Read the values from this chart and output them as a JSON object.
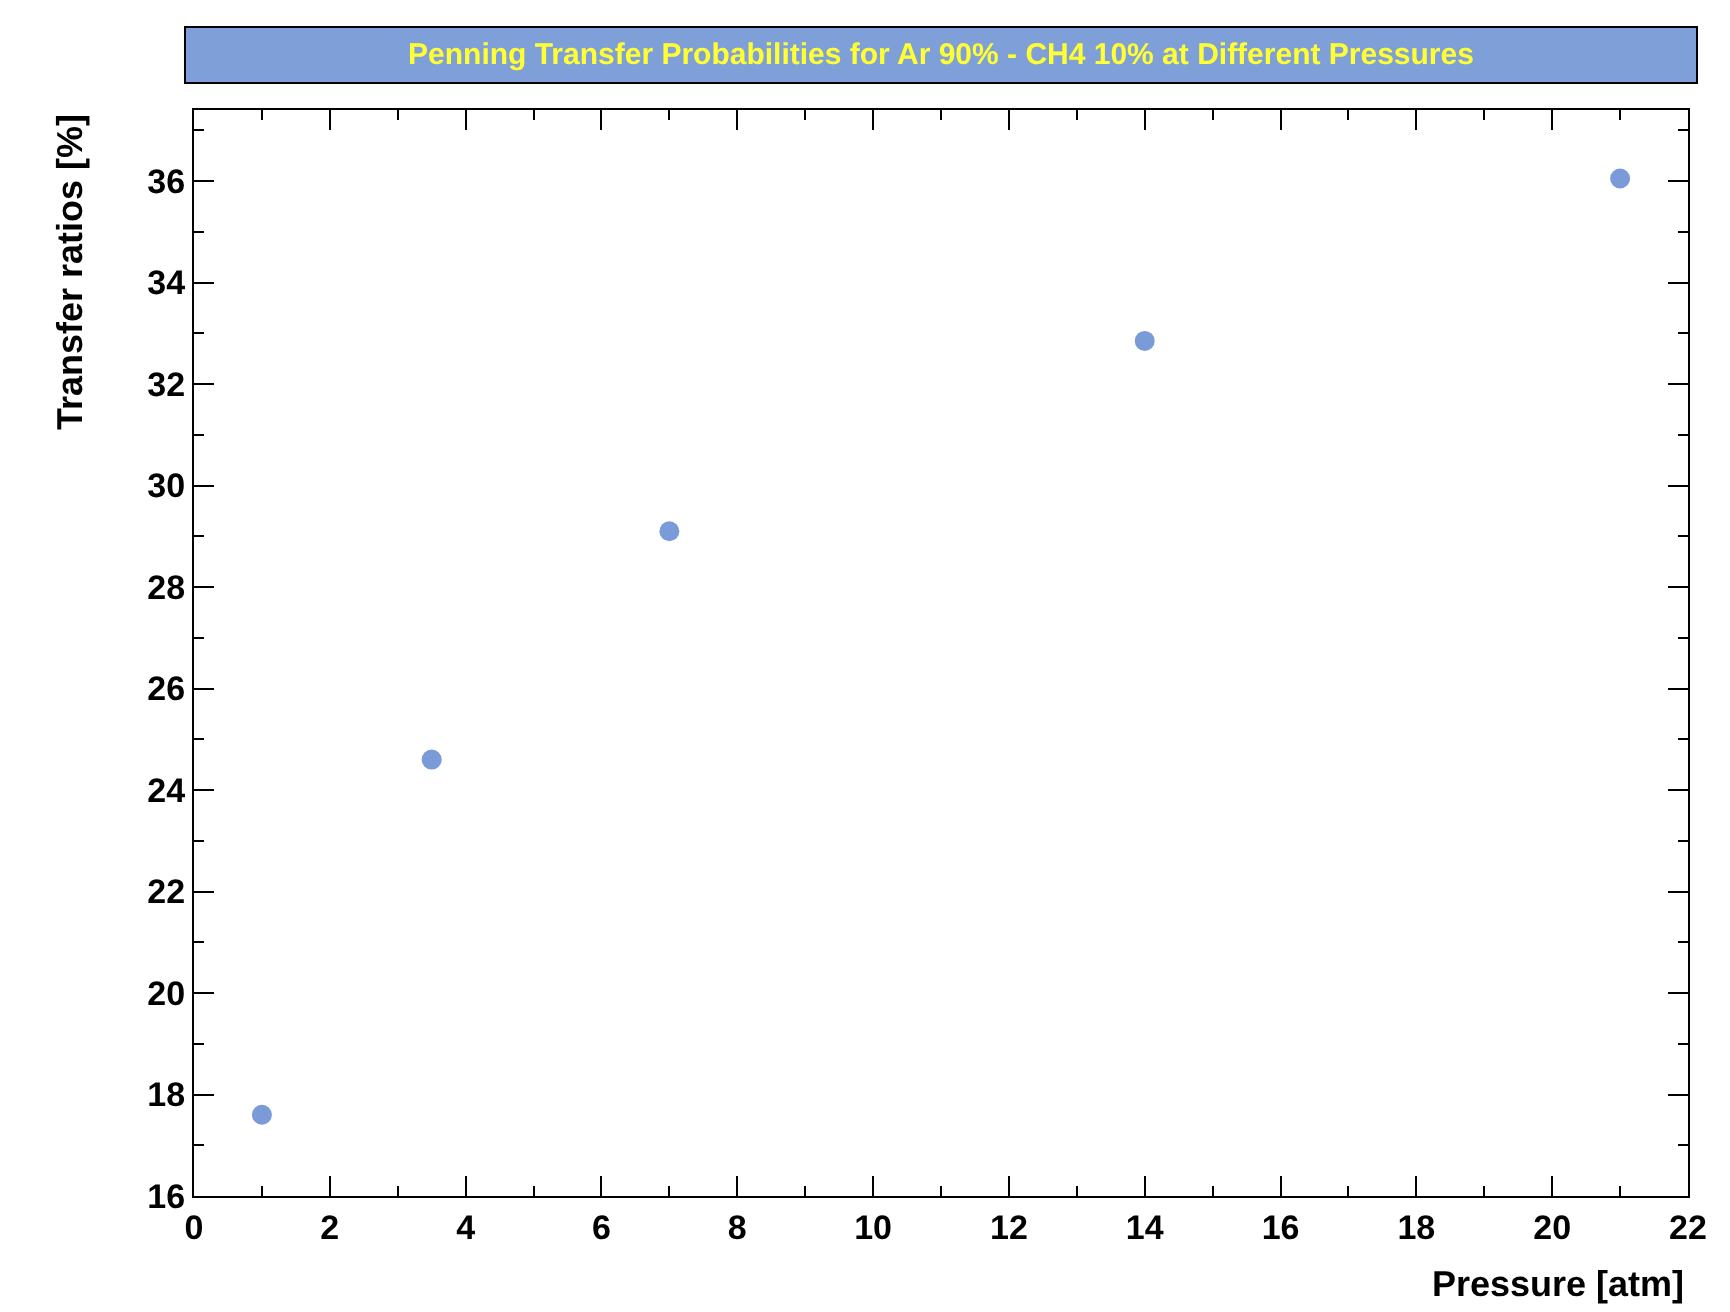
{
  "chart_data": {
    "type": "scatter",
    "title": "Penning Transfer Probabilities for Ar 90% - CH4 10% at Different Pressures",
    "xlabel": "Pressure [atm]",
    "ylabel": "Transfer ratios [%]",
    "x": [
      1,
      3.5,
      7,
      14,
      21
    ],
    "series": [
      {
        "color": "#7b9ad8",
        "values": [
          17.6,
          24.6,
          29.1,
          32.85,
          36.05
        ]
      }
    ],
    "xlim": [
      0,
      22
    ],
    "xticks": [
      0,
      2,
      4,
      6,
      8,
      10,
      12,
      14,
      16,
      18,
      20,
      22
    ],
    "ylim": [
      16,
      37.4
    ],
    "yticks": [
      16,
      18,
      20,
      22,
      24,
      26,
      28,
      30,
      32,
      34,
      36
    ],
    "marker": "circle"
  }
}
